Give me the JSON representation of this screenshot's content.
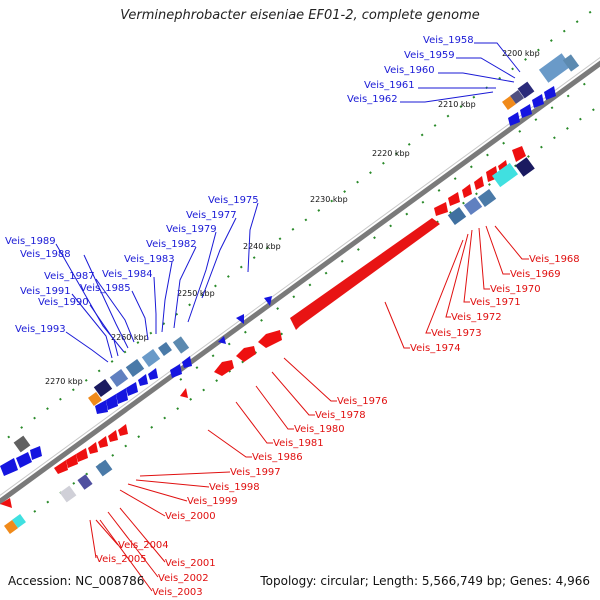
{
  "title": "Verminephrobacter eiseniae EF01-2, complete genome",
  "footer": {
    "accession": "Accession: NC_008786",
    "topology": "Topology: circular; Length: 5,566,749 bp; Genes: 4,966"
  },
  "colors": {
    "backbone": "#8a8a8a",
    "forward_gene": "#1515e0",
    "reverse_gene": "#ee1010",
    "tick_dot": "#2a8a2a",
    "label_blue": "#1a1ad6",
    "label_red": "#e01010"
  },
  "scale_labels": [
    "2200 kbp",
    "2210 kbp",
    "2220 kbp",
    "2230 kbp",
    "2240 kbp",
    "2250 kbp",
    "2260 kbp",
    "2270 kbp"
  ],
  "blue_labels": [
    "Veis_1958",
    "Veis_1959",
    "Veis_1960",
    "Veis_1961",
    "Veis_1962",
    "Veis_1975",
    "Veis_1977",
    "Veis_1979",
    "Veis_1982",
    "Veis_1983",
    "Veis_1984",
    "Veis_1985",
    "Veis_1987",
    "Veis_1988",
    "Veis_1989",
    "Veis_1990",
    "Veis_1991",
    "Veis_1993"
  ],
  "red_labels": [
    "Veis_1968",
    "Veis_1969",
    "Veis_1970",
    "Veis_1971",
    "Veis_1972",
    "Veis_1973",
    "Veis_1974",
    "Veis_1976",
    "Veis_1978",
    "Veis_1980",
    "Veis_1981",
    "Veis_1986",
    "Veis_1997",
    "Veis_1998",
    "Veis_1999",
    "Veis_2000",
    "Veis_2001",
    "Veis_2002",
    "Veis_2003",
    "Veis_2004",
    "Veis_2005"
  ]
}
